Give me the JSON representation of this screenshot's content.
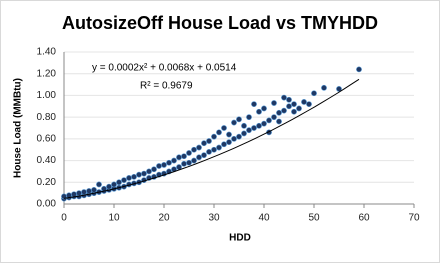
{
  "chart_data": {
    "type": "scatter",
    "title": "AutosizeOff House Load vs TMYHDD",
    "x_label": "HDD",
    "y_label": "House Load (MMBtu)",
    "annotations": [
      "y = 0.0002x² + 0.0068x + 0.0514",
      "R² = 0.9679"
    ],
    "trendline": {
      "coefficients": [
        0.0002,
        0.0068,
        0.0514
      ],
      "x_range": [
        0,
        59
      ]
    },
    "color": "#1f3864",
    "grid": true,
    "xlim": [
      0,
      70
    ],
    "xticks": [
      0,
      10,
      20,
      30,
      40,
      50,
      60,
      70
    ],
    "ylim": [
      0,
      1.4
    ],
    "yticks": [
      {
        "value": 0,
        "label": "0.00"
      },
      {
        "value": 0.2,
        "label": "0.20"
      },
      {
        "value": 0.4,
        "label": "0.40"
      },
      {
        "value": 0.6,
        "label": "0.60"
      },
      {
        "value": 0.8,
        "label": "0.80"
      },
      {
        "value": 1.0,
        "label": "1.00"
      },
      {
        "value": 1.2,
        "label": "1.20"
      },
      {
        "value": 1.4,
        "label": "1.40"
      }
    ],
    "x": [
      0,
      0,
      1,
      1,
      2,
      2,
      3,
      3,
      4,
      4,
      5,
      5,
      6,
      6,
      7,
      7,
      8,
      8,
      9,
      9,
      10,
      10,
      11,
      11,
      12,
      12,
      13,
      13,
      14,
      14,
      15,
      15,
      16,
      16,
      17,
      17,
      18,
      18,
      19,
      19,
      20,
      20,
      21,
      21,
      22,
      22,
      23,
      23,
      24,
      24,
      25,
      25,
      26,
      26,
      27,
      27,
      28,
      28,
      29,
      29,
      30,
      30,
      31,
      31,
      32,
      32,
      33,
      33,
      34,
      34,
      35,
      35,
      36,
      36,
      37,
      37,
      38,
      38,
      39,
      39,
      40,
      40,
      41,
      41,
      42,
      42,
      43,
      43,
      44,
      44,
      45,
      45,
      46,
      46,
      47,
      48,
      49,
      50,
      52,
      55,
      59
    ],
    "values": [
      0.05,
      0.07,
      0.06,
      0.08,
      0.07,
      0.09,
      0.07,
      0.1,
      0.08,
      0.11,
      0.09,
      0.12,
      0.1,
      0.13,
      0.11,
      0.18,
      0.12,
      0.14,
      0.13,
      0.16,
      0.14,
      0.18,
      0.15,
      0.2,
      0.16,
      0.22,
      0.18,
      0.24,
      0.19,
      0.25,
      0.2,
      0.27,
      0.22,
      0.28,
      0.24,
      0.3,
      0.25,
      0.32,
      0.27,
      0.35,
      0.28,
      0.36,
      0.3,
      0.38,
      0.32,
      0.4,
      0.34,
      0.43,
      0.37,
      0.44,
      0.38,
      0.47,
      0.4,
      0.5,
      0.43,
      0.52,
      0.45,
      0.56,
      0.48,
      0.58,
      0.5,
      0.62,
      0.52,
      0.66,
      0.55,
      0.7,
      0.57,
      0.64,
      0.6,
      0.75,
      0.62,
      0.78,
      0.65,
      0.72,
      0.68,
      0.8,
      0.7,
      0.92,
      0.72,
      0.85,
      0.74,
      0.88,
      0.77,
      0.66,
      0.8,
      0.93,
      0.84,
      0.76,
      0.86,
      0.98,
      0.9,
      0.96,
      0.92,
      0.85,
      0.88,
      0.94,
      0.92,
      1.02,
      1.07,
      1.06,
      1.24
    ]
  }
}
